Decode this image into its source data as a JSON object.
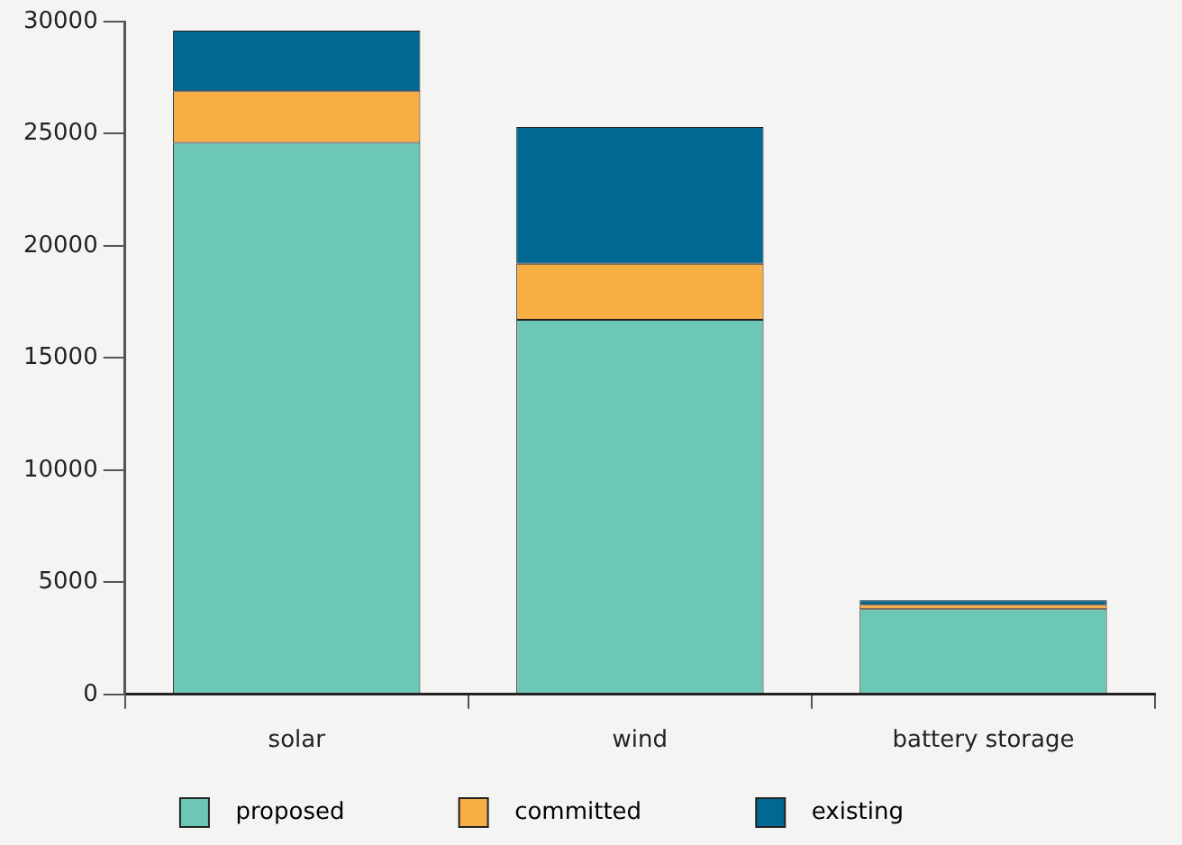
{
  "chart_data": {
    "type": "bar",
    "stacked": true,
    "categories": [
      "solar",
      "wind",
      "battery storage"
    ],
    "series": [
      {
        "name": "proposed",
        "color": "#6cc7b6",
        "values": [
          24600,
          16700,
          3800
        ]
      },
      {
        "name": "committed",
        "color": "#f7ae42",
        "values": [
          2300,
          2500,
          200
        ]
      },
      {
        "name": "existing",
        "color": "#006893",
        "values": [
          2700,
          6100,
          200
        ]
      }
    ],
    "ylim": [
      0,
      30000
    ],
    "yticks": [
      0,
      5000,
      10000,
      15000,
      20000,
      25000,
      30000
    ],
    "grid": false,
    "legend": "bottom"
  }
}
